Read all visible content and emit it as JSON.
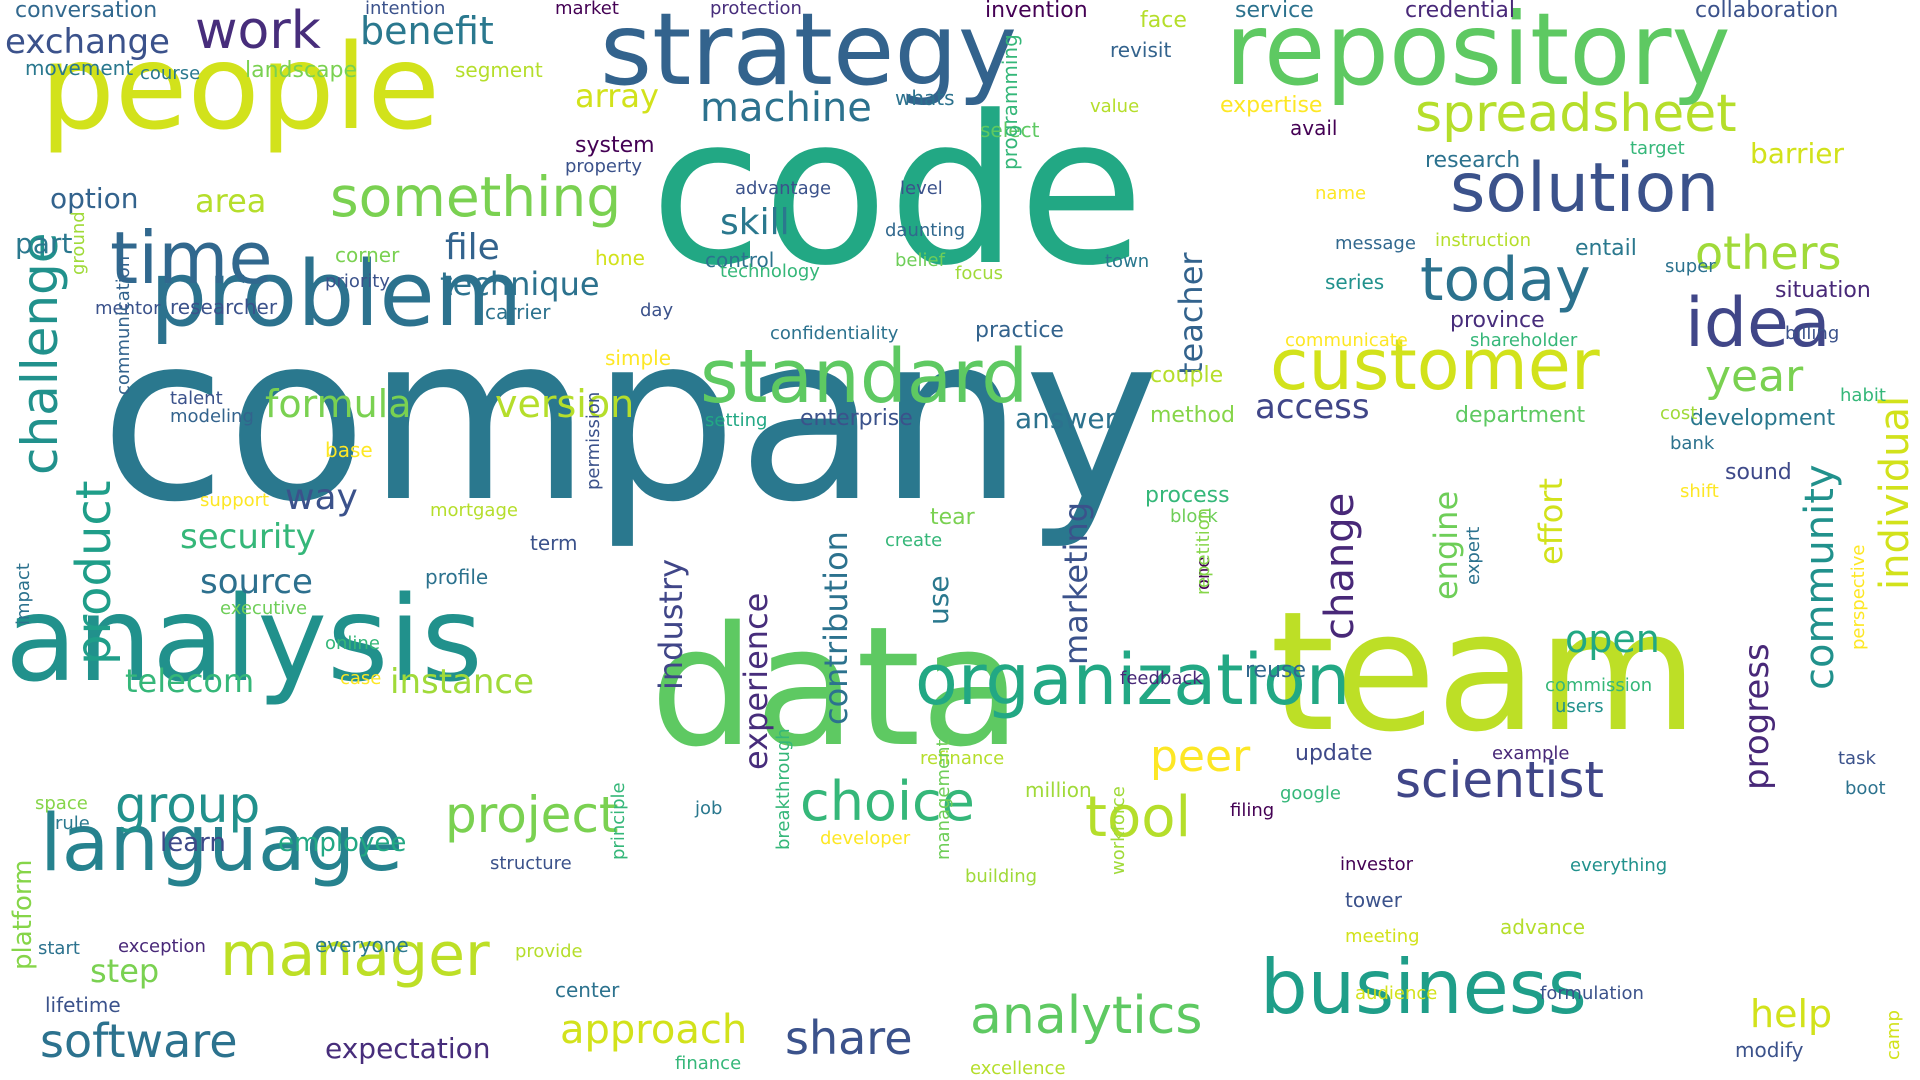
{
  "words": [
    {
      "text": "company",
      "color": "#2a788e"
    },
    {
      "text": "code",
      "color": "#22a884"
    },
    {
      "text": "data",
      "color": "#5ec962"
    },
    {
      "text": "team",
      "color": "#bddf26"
    },
    {
      "text": "analysis",
      "color": "#21918c"
    },
    {
      "text": "people",
      "color": "#d2e21b"
    },
    {
      "text": "repository",
      "color": "#5ec962"
    },
    {
      "text": "strategy",
      "color": "#33638d"
    },
    {
      "text": "problem",
      "color": "#2c728e"
    },
    {
      "text": "organization",
      "color": "#22a884"
    },
    {
      "text": "business",
      "color": "#1f9e89"
    },
    {
      "text": "standard",
      "color": "#5ec962"
    },
    {
      "text": "language",
      "color": "#26828e"
    },
    {
      "text": "manager",
      "color": "#bddf26"
    },
    {
      "text": "customer",
      "color": "#d2e21b"
    },
    {
      "text": "solution",
      "color": "#3b528b"
    },
    {
      "text": "time",
      "color": "#31688e"
    },
    {
      "text": "idea",
      "color": "#404688"
    },
    {
      "text": "today",
      "color": "#2c728e"
    },
    {
      "text": "something",
      "color": "#7ad151"
    },
    {
      "text": "spreadsheet",
      "color": "#b5de2b"
    },
    {
      "text": "challenge",
      "color": "#21918c"
    },
    {
      "text": "analytics",
      "color": "#5ec962"
    },
    {
      "text": "software",
      "color": "#2c728e"
    },
    {
      "text": "share",
      "color": "#3b528b"
    },
    {
      "text": "scientist",
      "color": "#404688"
    },
    {
      "text": "choice",
      "color": "#35b779"
    },
    {
      "text": "project",
      "color": "#7ad151"
    },
    {
      "text": "tool",
      "color": "#b5de2b"
    },
    {
      "text": "group",
      "color": "#21918c"
    },
    {
      "text": "product",
      "color": "#1f9e89"
    },
    {
      "text": "year",
      "color": "#7ad151"
    },
    {
      "text": "others",
      "color": "#a0da39"
    },
    {
      "text": "work",
      "color": "#472d7b"
    },
    {
      "text": "formula",
      "color": "#7ad151"
    },
    {
      "text": "version",
      "color": "#b5de2b"
    },
    {
      "text": "security",
      "color": "#35b779"
    },
    {
      "text": "source",
      "color": "#2d708e"
    },
    {
      "text": "machine",
      "color": "#2c728e"
    },
    {
      "text": "benefit",
      "color": "#2a788e"
    },
    {
      "text": "exchange",
      "color": "#3b528b"
    },
    {
      "text": "individual",
      "color": "#d2e21b"
    },
    {
      "text": "community",
      "color": "#21918c"
    },
    {
      "text": "approach",
      "color": "#d2e21b"
    },
    {
      "text": "access",
      "color": "#404688"
    },
    {
      "text": "peer",
      "color": "#fde725"
    },
    {
      "text": "instance",
      "color": "#a0da39"
    },
    {
      "text": "open",
      "color": "#22a884"
    },
    {
      "text": "help",
      "color": "#d2e21b"
    },
    {
      "text": "way",
      "color": "#3b528b"
    },
    {
      "text": "change",
      "color": "#482878"
    },
    {
      "text": "marketing",
      "color": "#3b528b"
    },
    {
      "text": "contribution",
      "color": "#2c728e"
    },
    {
      "text": "experience",
      "color": "#472d7b"
    },
    {
      "text": "industry",
      "color": "#404688"
    },
    {
      "text": "engine",
      "color": "#6ece58"
    },
    {
      "text": "effort",
      "color": "#d2e21b"
    },
    {
      "text": "progress",
      "color": "#482878"
    },
    {
      "text": "teacher",
      "color": "#33638d"
    },
    {
      "text": "skill",
      "color": "#2a788e"
    },
    {
      "text": "file",
      "color": "#33638d"
    },
    {
      "text": "technique",
      "color": "#2c728e"
    },
    {
      "text": "array",
      "color": "#d2e21b"
    },
    {
      "text": "area",
      "color": "#b5de2b"
    },
    {
      "text": "option",
      "color": "#33638d"
    },
    {
      "text": "part",
      "color": "#2a788e"
    },
    {
      "text": "telecom",
      "color": "#35b779"
    },
    {
      "text": "employee",
      "color": "#22a884"
    },
    {
      "text": "learn",
      "color": "#3e4989"
    },
    {
      "text": "step",
      "color": "#7ad151"
    },
    {
      "text": "expectation",
      "color": "#472d7b"
    },
    {
      "text": "platform",
      "color": "#86d549"
    },
    {
      "text": "answer",
      "color": "#2c728e"
    },
    {
      "text": "use",
      "color": "#2a788e"
    },
    {
      "text": "practice",
      "color": "#33638d"
    },
    {
      "text": "enterprise",
      "color": "#3b528b"
    },
    {
      "text": "process",
      "color": "#35b779"
    },
    {
      "text": "tear",
      "color": "#7ad151"
    },
    {
      "text": "couple",
      "color": "#b5de2b"
    },
    {
      "text": "method",
      "color": "#86d549"
    },
    {
      "text": "department",
      "color": "#5ec962"
    },
    {
      "text": "development",
      "color": "#2a788e"
    },
    {
      "text": "sound",
      "color": "#3e4989"
    },
    {
      "text": "update",
      "color": "#3e4989"
    },
    {
      "text": "reuse",
      "color": "#31688e"
    },
    {
      "text": "research",
      "color": "#2c728e"
    },
    {
      "text": "barrier",
      "color": "#d2e21b"
    },
    {
      "text": "entail",
      "color": "#2a788e"
    },
    {
      "text": "province",
      "color": "#472d7b"
    },
    {
      "text": "situation",
      "color": "#482878"
    },
    {
      "text": "billing",
      "color": "#3b528b"
    },
    {
      "text": "conversation",
      "color": "#31688e"
    },
    {
      "text": "movement",
      "color": "#2a788e"
    },
    {
      "text": "course",
      "color": "#2a788e"
    },
    {
      "text": "landscape",
      "color": "#7ad151"
    },
    {
      "text": "segment",
      "color": "#b5de2b"
    },
    {
      "text": "intention",
      "color": "#3b528b"
    },
    {
      "text": "market",
      "color": "#440154"
    },
    {
      "text": "protection",
      "color": "#472d7b"
    },
    {
      "text": "invention",
      "color": "#440154"
    },
    {
      "text": "face",
      "color": "#b5de2b"
    },
    {
      "text": "service",
      "color": "#2c728e"
    },
    {
      "text": "credential",
      "color": "#482878"
    },
    {
      "text": "collaboration",
      "color": "#3b528b"
    },
    {
      "text": "revisit",
      "color": "#33638d"
    },
    {
      "text": "whats",
      "color": "#2c728e"
    },
    {
      "text": "value",
      "color": "#b5de2b"
    },
    {
      "text": "expertise",
      "color": "#fde725"
    },
    {
      "text": "avail",
      "color": "#440154"
    },
    {
      "text": "select",
      "color": "#5ec962"
    },
    {
      "text": "system",
      "color": "#440154"
    },
    {
      "text": "property",
      "color": "#3b528b"
    },
    {
      "text": "advantage",
      "color": "#3b528b"
    },
    {
      "text": "level",
      "color": "#3b528b"
    },
    {
      "text": "daunting",
      "color": "#31688e"
    },
    {
      "text": "belief",
      "color": "#6ece58"
    },
    {
      "text": "focus",
      "color": "#a0da39"
    },
    {
      "text": "control",
      "color": "#2c728e"
    },
    {
      "text": "technology",
      "color": "#35b779"
    },
    {
      "text": "programming",
      "color": "#35b779"
    },
    {
      "text": "town",
      "color": "#2a788e"
    },
    {
      "text": "name",
      "color": "#fde725"
    },
    {
      "text": "message",
      "color": "#31688e"
    },
    {
      "text": "instruction",
      "color": "#b5de2b"
    },
    {
      "text": "series",
      "color": "#21918c"
    },
    {
      "text": "super",
      "color": "#2c728e"
    },
    {
      "text": "target",
      "color": "#35b779"
    },
    {
      "text": "corner",
      "color": "#7ad151"
    },
    {
      "text": "priority",
      "color": "#3b528b"
    },
    {
      "text": "hone",
      "color": "#d2e21b"
    },
    {
      "text": "researcher",
      "color": "#3b528b"
    },
    {
      "text": "carrier",
      "color": "#2c728e"
    },
    {
      "text": "day",
      "color": "#3b528b"
    },
    {
      "text": "confidentiality",
      "color": "#2c728e"
    },
    {
      "text": "mentor",
      "color": "#3b528b"
    },
    {
      "text": "ground",
      "color": "#a0da39"
    },
    {
      "text": "simple",
      "color": "#fde725"
    },
    {
      "text": "talent",
      "color": "#3b528b"
    },
    {
      "text": "modeling",
      "color": "#33638d"
    },
    {
      "text": "communication",
      "color": "#33638d"
    },
    {
      "text": "base",
      "color": "#fde725"
    },
    {
      "text": "support",
      "color": "#fde725"
    },
    {
      "text": "mortgage",
      "color": "#b5de2b"
    },
    {
      "text": "term",
      "color": "#3b528b"
    },
    {
      "text": "profile",
      "color": "#2c728e"
    },
    {
      "text": "executive",
      "color": "#6ece58"
    },
    {
      "text": "permission",
      "color": "#3b528b"
    },
    {
      "text": "online",
      "color": "#35b779"
    },
    {
      "text": "case",
      "color": "#fde725"
    },
    {
      "text": "impact",
      "color": "#2c728e"
    },
    {
      "text": "setting",
      "color": "#22a884"
    },
    {
      "text": "communicate",
      "color": "#fde725"
    },
    {
      "text": "shareholder",
      "color": "#35b779"
    },
    {
      "text": "habit",
      "color": "#35b779"
    },
    {
      "text": "cost",
      "color": "#a0da39"
    },
    {
      "text": "bank",
      "color": "#2c728e"
    },
    {
      "text": "shift",
      "color": "#fde725"
    },
    {
      "text": "block",
      "color": "#6ece58"
    },
    {
      "text": "create",
      "color": "#35b779"
    },
    {
      "text": "one",
      "color": "#440154"
    },
    {
      "text": "expert",
      "color": "#2c728e"
    },
    {
      "text": "repetition",
      "color": "#86d549"
    },
    {
      "text": "feedback",
      "color": "#482878"
    },
    {
      "text": "commission",
      "color": "#35b779"
    },
    {
      "text": "users",
      "color": "#21918c"
    },
    {
      "text": "perspective",
      "color": "#fde725"
    },
    {
      "text": "task",
      "color": "#3b528b"
    },
    {
      "text": "boot",
      "color": "#2c728e"
    },
    {
      "text": "example",
      "color": "#482878"
    },
    {
      "text": "refinance",
      "color": "#b5de2b"
    },
    {
      "text": "million",
      "color": "#a0da39"
    },
    {
      "text": "google",
      "color": "#35b779"
    },
    {
      "text": "filing",
      "color": "#440154"
    },
    {
      "text": "space",
      "color": "#86d549"
    },
    {
      "text": "rule",
      "color": "#2a788e"
    },
    {
      "text": "job",
      "color": "#2a788e"
    },
    {
      "text": "developer",
      "color": "#fde725"
    },
    {
      "text": "structure",
      "color": "#3b528b"
    },
    {
      "text": "principle",
      "color": "#35b779"
    },
    {
      "text": "breakthrough",
      "color": "#35b779"
    },
    {
      "text": "management",
      "color": "#6ece58"
    },
    {
      "text": "building",
      "color": "#a0da39"
    },
    {
      "text": "workforce",
      "color": "#a0da39"
    },
    {
      "text": "investor",
      "color": "#440154"
    },
    {
      "text": "everything",
      "color": "#21918c"
    },
    {
      "text": "tower",
      "color": "#3b528b"
    },
    {
      "text": "advance",
      "color": "#b5de2b"
    },
    {
      "text": "meeting",
      "color": "#d2e21b"
    },
    {
      "text": "start",
      "color": "#2c728e"
    },
    {
      "text": "exception",
      "color": "#482878"
    },
    {
      "text": "everyone",
      "color": "#2a788e"
    },
    {
      "text": "provide",
      "color": "#b5de2b"
    },
    {
      "text": "center",
      "color": "#2c728e"
    },
    {
      "text": "audience",
      "color": "#d2e21b"
    },
    {
      "text": "formulation",
      "color": "#3b528b"
    },
    {
      "text": "lifetime",
      "color": "#3b528b"
    },
    {
      "text": "finance",
      "color": "#35b779"
    },
    {
      "text": "excellence",
      "color": "#b5de2b"
    },
    {
      "text": "modify",
      "color": "#3b528b"
    },
    {
      "text": "camp",
      "color": "#d2e21b"
    }
  ]
}
